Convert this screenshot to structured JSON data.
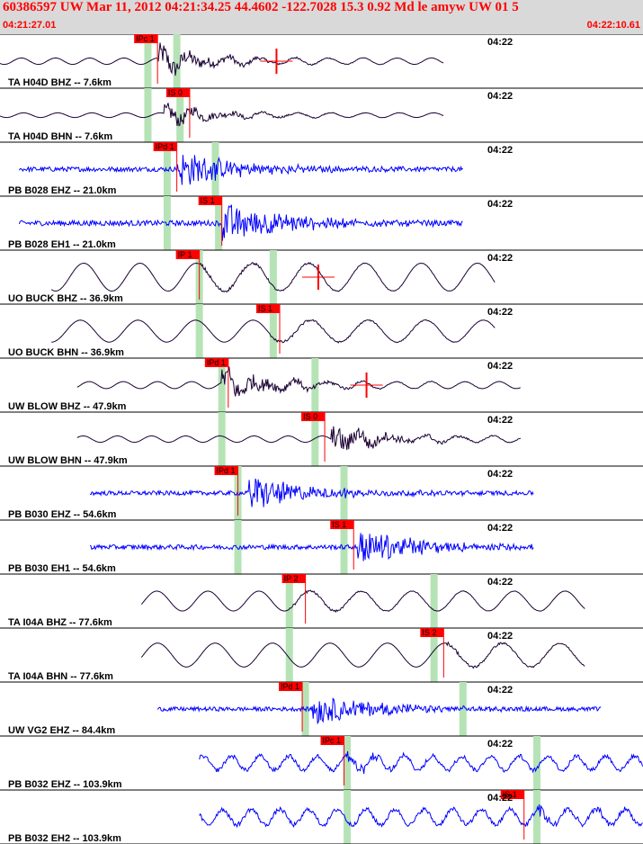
{
  "header": {
    "title": "60386597 UW Mar 11, 2012 04:21:34.25   44.4602 -122.7028 15.3 0.92 Md le amyw UW 01   5",
    "start_time": "04:21:27.01",
    "end_time": "04:22:10.61"
  },
  "colors": {
    "header_bg": "#d9d9d9",
    "header_text": "#ff0000",
    "trace_short_period": "#0000ff",
    "trace_broadband": "#1a0033",
    "pick_label": "#ff0000",
    "predicted_bar": "#b6e3b6",
    "divider": "#000000"
  },
  "chart_data": {
    "type": "line",
    "description_source": "seismogram record section",
    "x_start": "04:21:27.01",
    "x_end": "04:22:10.61",
    "minute_mark": "04:22",
    "traces": [
      {
        "label": "TA H04D BHZ -- 7.6km",
        "kind": "broadband",
        "start": 0.0,
        "end": 0.69,
        "pred_p": 0.23,
        "pred_s": 0.275,
        "onset": 0.245,
        "amp": 0.55,
        "pick": {
          "text": "IPc 1",
          "pos": 0.245
        },
        "coda": {
          "pos": 0.43
        }
      },
      {
        "label": "TA H04D BHN -- 7.6km",
        "kind": "broadband",
        "start": 0.0,
        "end": 0.69,
        "pred_p": 0.23,
        "pred_s": 0.28,
        "onset": 0.255,
        "amp": 0.4,
        "pick": {
          "text": "IS 0",
          "pos": 0.295
        }
      },
      {
        "label": "PB B028 EHZ -- 21.0km",
        "kind": "short",
        "start": 0.03,
        "end": 0.72,
        "pred_p": 0.26,
        "pred_s": 0.335,
        "onset": 0.275,
        "amp": 0.8,
        "pick": {
          "text": "IPd 1",
          "pos": 0.275
        }
      },
      {
        "label": "PB B028 EH1 -- 21.0km",
        "kind": "short",
        "start": 0.03,
        "end": 0.72,
        "pred_p": 0.26,
        "pred_s": 0.34,
        "onset": 0.345,
        "amp": 0.9,
        "pick": {
          "text": "IS 1",
          "pos": 0.345
        }
      },
      {
        "label": "UO BUCK BHZ -- 36.9km",
        "kind": "long",
        "start": 0.08,
        "end": 0.77,
        "pred_p": 0.31,
        "pred_s": 0.425,
        "onset": 0.31,
        "amp": 0.7,
        "pick": {
          "text": "IP 1",
          "pos": 0.31
        },
        "coda": {
          "pos": 0.495
        }
      },
      {
        "label": "UO BUCK BHN -- 36.9km",
        "kind": "long",
        "start": 0.08,
        "end": 0.77,
        "pred_p": 0.31,
        "pred_s": 0.425,
        "onset": 0.42,
        "amp": 0.55,
        "pick": {
          "text": "IS 1",
          "pos": 0.435
        }
      },
      {
        "label": "UW BLOW BHZ -- 47.9km",
        "kind": "broadband",
        "start": 0.12,
        "end": 0.81,
        "pred_p": 0.345,
        "pred_s": 0.49,
        "onset": 0.345,
        "amp": 0.6,
        "pick": {
          "text": "IPd 1",
          "pos": 0.355
        },
        "coda": {
          "pos": 0.57
        }
      },
      {
        "label": "UW BLOW BHN -- 47.9km",
        "kind": "broadband",
        "start": 0.12,
        "end": 0.81,
        "pred_p": 0.345,
        "pred_s": 0.49,
        "onset": 0.515,
        "amp": 0.55,
        "pick": {
          "text": "IS 0",
          "pos": 0.505
        }
      },
      {
        "label": "PB B030 EHZ -- 54.6km",
        "kind": "short",
        "start": 0.14,
        "end": 0.83,
        "pred_p": 0.37,
        "pred_s": 0.535,
        "onset": 0.385,
        "amp": 0.75,
        "pick": {
          "text": "IPd 1",
          "pos": 0.37
        }
      },
      {
        "label": "PB B030 EH1 -- 54.6km",
        "kind": "short",
        "start": 0.14,
        "end": 0.83,
        "pred_p": 0.37,
        "pred_s": 0.535,
        "onset": 0.555,
        "amp": 0.8,
        "pick": {
          "text": "IS 1",
          "pos": 0.55
        }
      },
      {
        "label": "TA I04A BHZ -- 77.6km",
        "kind": "long",
        "start": 0.22,
        "end": 0.91,
        "pred_p": 0.45,
        "pred_s": 0.675,
        "onset": 0.45,
        "amp": 0.5,
        "pick": {
          "text": "IP 2",
          "pos": 0.475
        }
      },
      {
        "label": "TA I04A BHN -- 77.6km",
        "kind": "long",
        "start": 0.22,
        "end": 0.91,
        "pred_p": 0.45,
        "pred_s": 0.675,
        "onset": 0.695,
        "amp": 0.6,
        "pick": {
          "text": "IS 2",
          "pos": 0.69
        }
      },
      {
        "label": "UW VG2 EHZ -- 84.4km",
        "kind": "short",
        "start": 0.245,
        "end": 0.935,
        "pred_p": 0.475,
        "pred_s": 0.72,
        "onset": 0.485,
        "amp": 0.7,
        "pick": {
          "text": "IPd 1",
          "pos": 0.47
        }
      },
      {
        "label": "PB B032 EHZ -- 103.9km",
        "kind": "short_lp",
        "start": 0.31,
        "end": 1.0,
        "pred_p": 0.54,
        "pred_s": 0.835,
        "onset": 0.54,
        "amp": 0.5,
        "pick": {
          "text": "IPc 1",
          "pos": 0.535
        }
      },
      {
        "label": "PB B032 EH2 -- 103.9km",
        "kind": "short_lp",
        "start": 0.31,
        "end": 1.0,
        "pred_p": 0.54,
        "pred_s": 0.835,
        "onset": 0.835,
        "amp": 0.55,
        "pick": {
          "text": "IS 1",
          "pos": 0.815
        }
      }
    ]
  }
}
